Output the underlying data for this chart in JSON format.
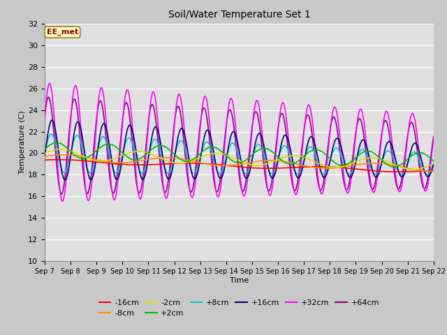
{
  "title": "Soil/Water Temperature Set 1",
  "xlabel": "Time",
  "ylabel": "Temperature (C)",
  "ylim": [
    10,
    32
  ],
  "yticks": [
    10,
    12,
    14,
    16,
    18,
    20,
    22,
    24,
    26,
    28,
    30,
    32
  ],
  "x_labels": [
    "Sep 7",
    "Sep 8",
    "Sep 9",
    "Sep 10",
    "Sep 11",
    "Sep 12",
    "Sep 13",
    "Sep 14",
    "Sep 15",
    "Sep 16",
    "Sep 17",
    "Sep 18",
    "Sep 19",
    "Sep 20",
    "Sep 21",
    "Sep 22"
  ],
  "annotation": "EE_met",
  "annotation_color": "#8B0000",
  "annotation_bg": "#FFFFC0",
  "fig_bg": "#C8C8C8",
  "plot_bg": "#E0E0E0",
  "colors": {
    "-16cm": "#FF0000",
    "-8cm": "#FF8C00",
    "-2cm": "#DDDD00",
    "+2cm": "#00BB00",
    "+8cm": "#00CCCC",
    "+16cm": "#000080",
    "+32cm": "#FF00FF",
    "+64cm": "#880088"
  }
}
